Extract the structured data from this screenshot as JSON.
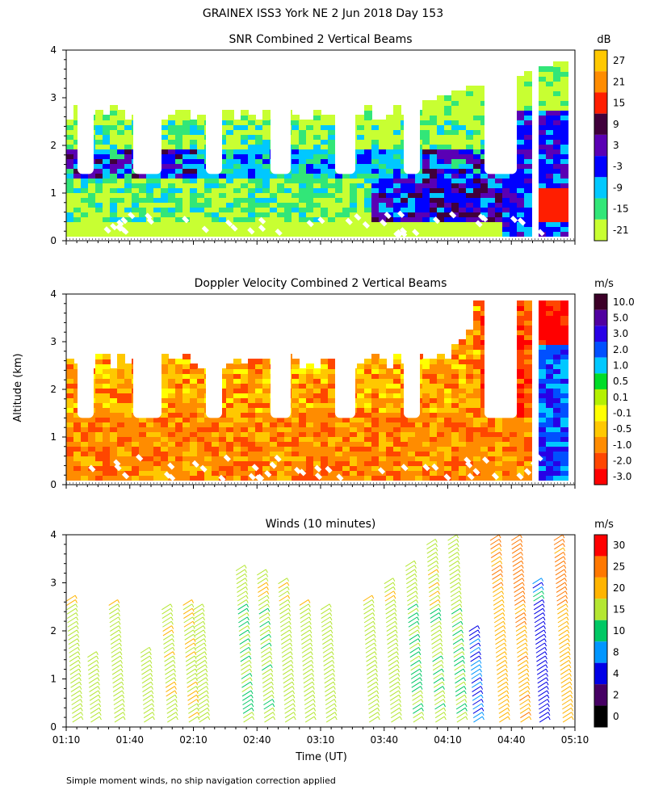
{
  "title": "GRAINEX ISS3 York NE   2 Jun 2018 Day 153",
  "footnote": "Simple moment winds, no ship navigation correction applied",
  "shared": {
    "ylabel": "Altitude (km)",
    "xlabel": "Time (UT)",
    "time_ticks": [
      "01:10",
      "01:40",
      "02:10",
      "02:40",
      "03:10",
      "03:40",
      "04:10",
      "04:40",
      "05:10"
    ],
    "altitude_ticks": [
      "0",
      "1",
      "2",
      "3",
      "4"
    ]
  },
  "chart_data": [
    {
      "type": "heatmap",
      "title": "SNR Combined 2 Vertical Beams",
      "unit": "dB",
      "xlim": [
        "01:10",
        "05:10"
      ],
      "ylim": [
        0,
        4
      ],
      "colorbar": {
        "ticks": [
          "27",
          "21",
          "15",
          "9",
          "3",
          "-3",
          "-9",
          "-15",
          "-21"
        ],
        "colors": [
          "#ffc800",
          "#ff8c00",
          "#ff1e00",
          "#40003c",
          "#5a00b4",
          "#0000ff",
          "#00c8ff",
          "#32e678",
          "#c8ff32"
        ]
      },
      "summary": [
        {
          "time": "01:10",
          "altitude_km": 1.0,
          "value_db": -9
        },
        {
          "time": "02:40",
          "altitude_km": 1.8,
          "value_db": -3
        },
        {
          "time": "04:10",
          "altitude_km": 0.5,
          "value_db": 3
        },
        {
          "time": "05:00",
          "altitude_km": 0.8,
          "value_db": 15
        }
      ]
    },
    {
      "type": "heatmap",
      "title": "Doppler Velocity Combined 2 Vertical Beams",
      "unit": "m/s",
      "xlim": [
        "01:10",
        "05:10"
      ],
      "ylim": [
        0,
        4
      ],
      "colorbar": {
        "ticks": [
          "10.0",
          "5.0",
          "3.0",
          "2.0",
          "1.0",
          "0.5",
          "0.1",
          "-0.1",
          "-0.5",
          "-1.0",
          "-2.0",
          "-3.0"
        ],
        "colors": [
          "#3c0028",
          "#5000a0",
          "#2800e6",
          "#0050ff",
          "#00c8ff",
          "#00dc28",
          "#b4f000",
          "#ffff00",
          "#ffc800",
          "#ff8c00",
          "#ff4600",
          "#ff0000"
        ]
      },
      "summary": [
        {
          "time": "01:40",
          "altitude_km": 1.0,
          "value_ms": -0.5
        },
        {
          "time": "04:20",
          "altitude_km": 3.0,
          "value_ms": -2.0
        },
        {
          "time": "05:00",
          "altitude_km": 1.5,
          "value_ms": 3.0
        }
      ]
    },
    {
      "type": "scatter",
      "title": "Winds (10 minutes)",
      "unit": "m/s",
      "xlim": [
        "01:10",
        "05:10"
      ],
      "ylim": [
        0,
        4
      ],
      "colorbar": {
        "ticks": [
          "30",
          "25",
          "20",
          "15",
          "10",
          "8",
          "4",
          "2",
          "0"
        ],
        "colors": [
          "#ff0000",
          "#ff7800",
          "#ffb400",
          "#b4e632",
          "#00c864",
          "#0096ff",
          "#0000e6",
          "#460064",
          "#000000"
        ]
      },
      "profiles": [
        {
          "time": "01:10",
          "speed": 18,
          "top_km": 2.7
        },
        {
          "time": "01:20",
          "speed": 17,
          "top_km": 1.5
        },
        {
          "time": "01:30",
          "speed": 18,
          "top_km": 2.6
        },
        {
          "time": "01:45",
          "speed": 17,
          "top_km": 1.6
        },
        {
          "time": "01:55",
          "speed": 19,
          "top_km": 2.5
        },
        {
          "time": "02:05",
          "speed": 19,
          "top_km": 2.6
        },
        {
          "time": "02:10",
          "speed": 18,
          "top_km": 2.5
        },
        {
          "time": "02:30",
          "speed": 15,
          "top_km": 3.3
        },
        {
          "time": "02:40",
          "speed": 16,
          "top_km": 3.2
        },
        {
          "time": "02:50",
          "speed": 17,
          "top_km": 3.0
        },
        {
          "time": "03:00",
          "speed": 18,
          "top_km": 2.6
        },
        {
          "time": "03:10",
          "speed": 18,
          "top_km": 2.5
        },
        {
          "time": "03:30",
          "speed": 17,
          "top_km": 2.7
        },
        {
          "time": "03:40",
          "speed": 17,
          "top_km": 3.0
        },
        {
          "time": "03:50",
          "speed": 15,
          "top_km": 3.4
        },
        {
          "time": "04:00",
          "speed": 16,
          "top_km": 3.8
        },
        {
          "time": "04:10",
          "speed": 15,
          "top_km": 3.9
        },
        {
          "time": "04:20",
          "speed": 8,
          "top_km": 2.0
        },
        {
          "time": "04:30",
          "speed": 22,
          "top_km": 3.9
        },
        {
          "time": "04:40",
          "speed": 24,
          "top_km": 3.9
        },
        {
          "time": "04:50",
          "speed": 6,
          "top_km": 3.0
        },
        {
          "time": "05:00",
          "speed": 23,
          "top_km": 3.9
        }
      ]
    }
  ]
}
